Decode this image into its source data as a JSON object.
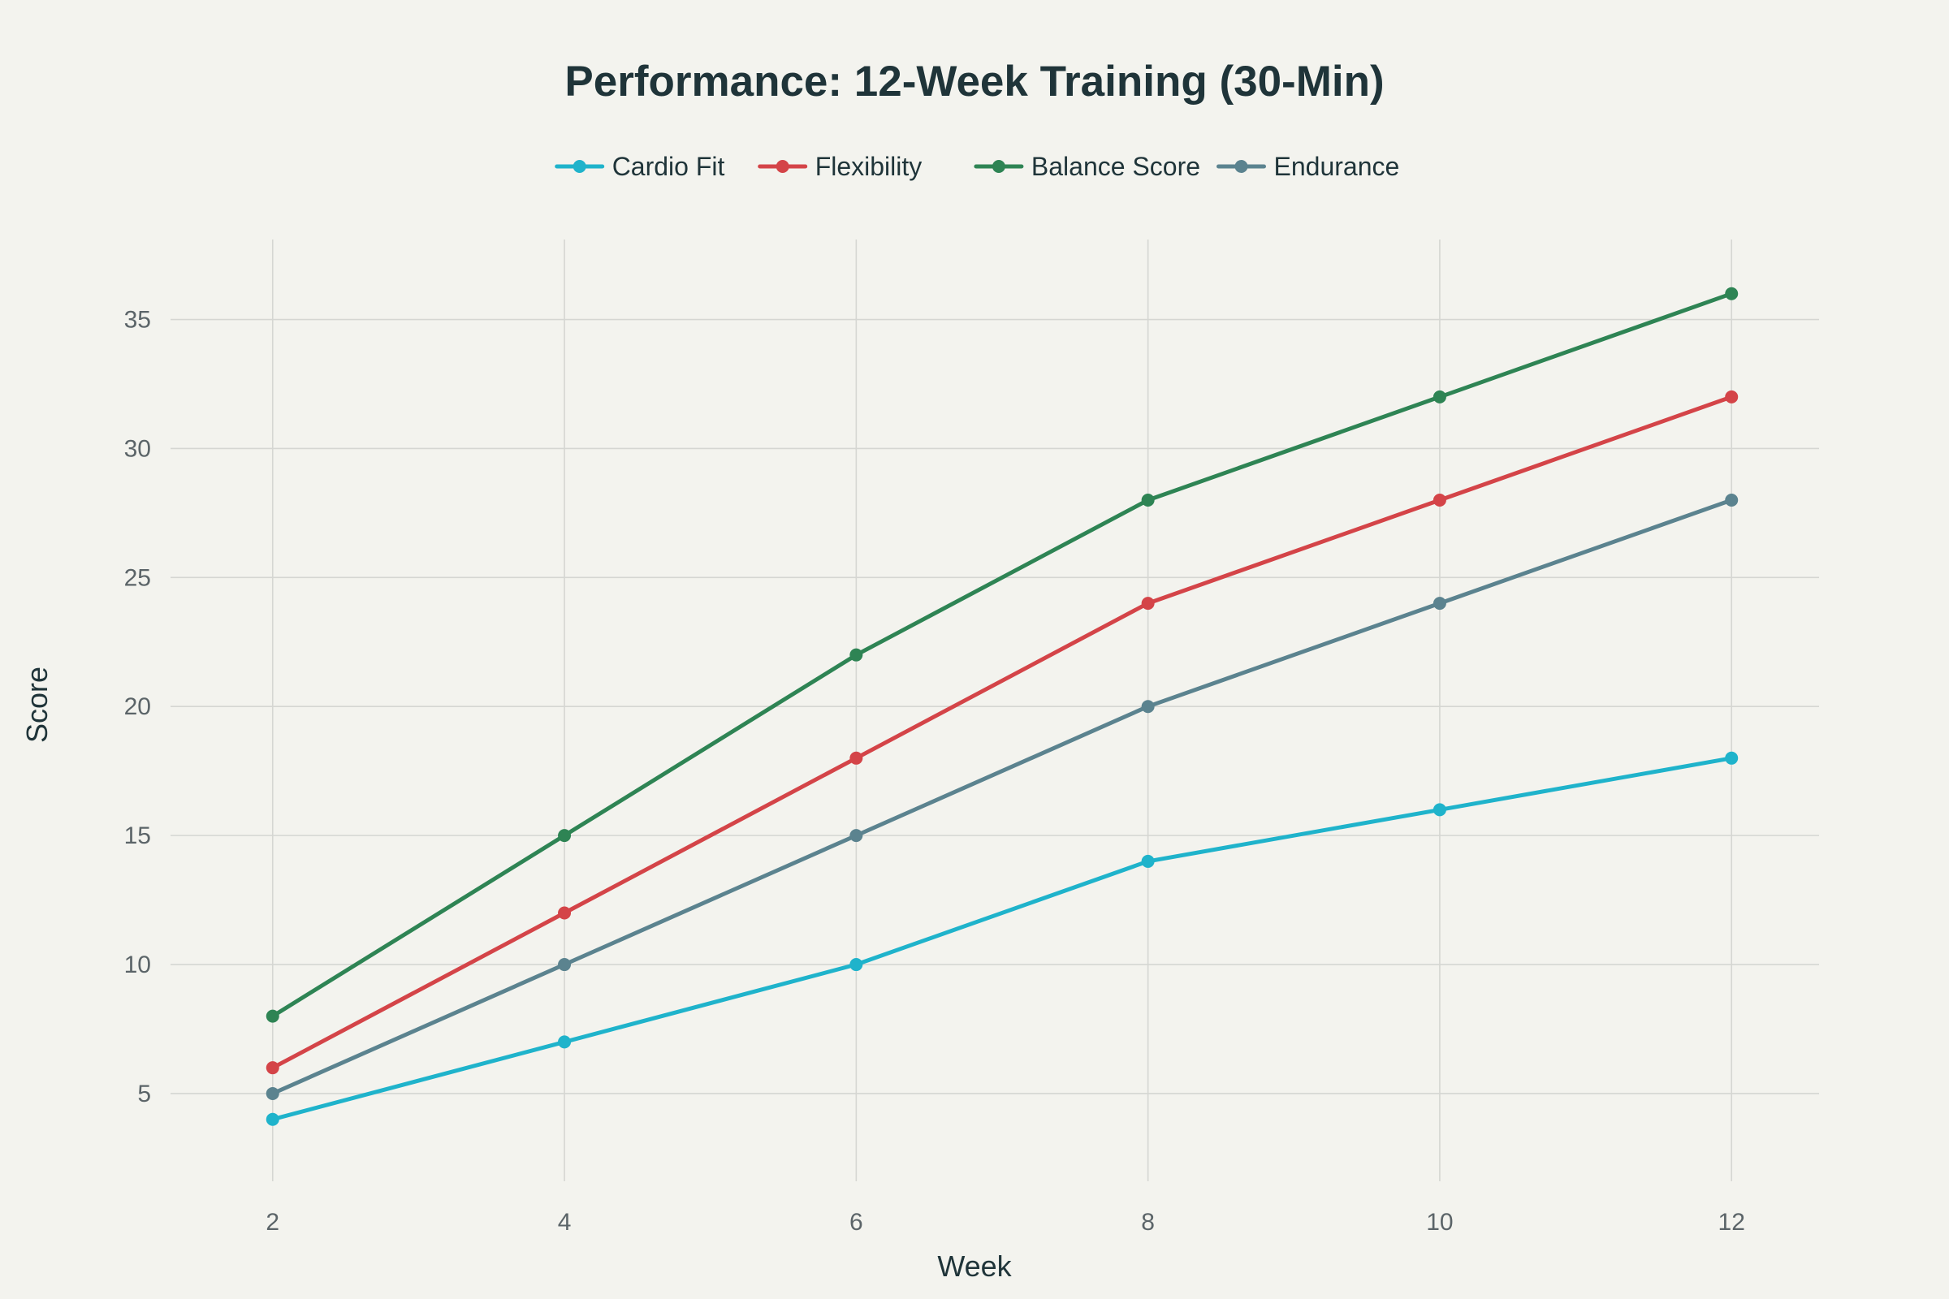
{
  "chart_data": {
    "type": "line",
    "title": "Performance: 12-Week Training (30-Min)",
    "xlabel": "Week",
    "ylabel": "Score",
    "x": [
      2,
      4,
      6,
      8,
      10,
      12
    ],
    "x_ticks": [
      2,
      4,
      6,
      8,
      10,
      12
    ],
    "y_ticks": [
      5,
      10,
      15,
      20,
      25,
      30,
      35
    ],
    "xlim": [
      1.3,
      12.6
    ],
    "ylim": [
      1.6,
      38.1
    ],
    "grid": true,
    "legend_position": "top-center",
    "series": [
      {
        "name": "Cardio Fit",
        "color": "#1fb3cb",
        "values": [
          4,
          7,
          10,
          14,
          16,
          18
        ]
      },
      {
        "name": "Flexibility",
        "color": "#d44448",
        "values": [
          6,
          12,
          18,
          24,
          28,
          32
        ]
      },
      {
        "name": "Balance Score",
        "color": "#2e8454",
        "values": [
          8,
          15,
          22,
          28,
          32,
          36
        ]
      },
      {
        "name": "Endurance",
        "color": "#5b838f",
        "values": [
          5,
          10,
          15,
          20,
          24,
          28
        ]
      }
    ]
  }
}
